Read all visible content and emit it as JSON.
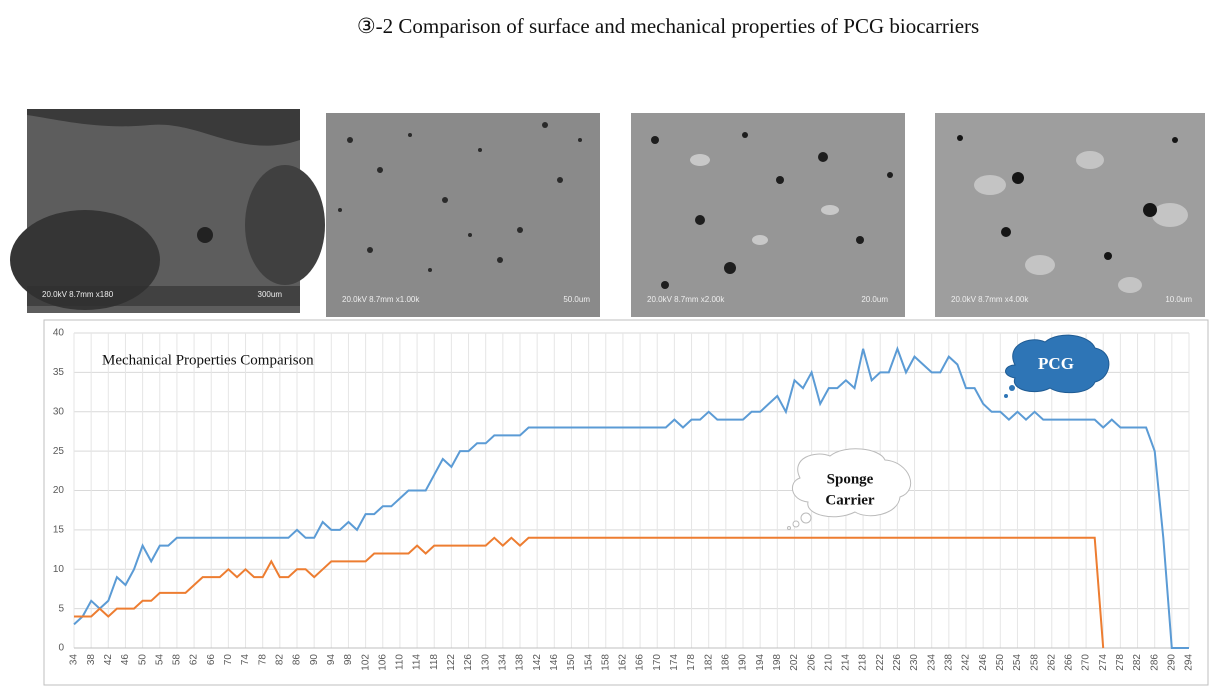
{
  "header": {
    "title": "③-2 Comparison of surface and mechanical properties of PCG biocarriers"
  },
  "images": [
    {
      "info": "20.0kV 8.7mm x180",
      "scale": "300um"
    },
    {
      "info": "20.0kV 8.7mm x1.00k",
      "scale": "50.0um"
    },
    {
      "info": "20.0kV 8.7mm x2.00k",
      "scale": "20.0um"
    },
    {
      "info": "20.0kV 8.7mm x4.00k",
      "scale": "10.0um"
    }
  ],
  "chart_data": {
    "type": "line",
    "title": "Mechanical Properties Comparison",
    "annotations": [
      "PCG",
      "Sponge",
      "Carrier"
    ],
    "x": [
      34,
      36,
      38,
      40,
      42,
      44,
      46,
      48,
      50,
      52,
      54,
      56,
      58,
      60,
      62,
      64,
      66,
      68,
      70,
      72,
      74,
      76,
      78,
      80,
      82,
      84,
      86,
      88,
      90,
      92,
      94,
      96,
      98,
      100,
      102,
      104,
      106,
      108,
      110,
      112,
      114,
      116,
      118,
      120,
      122,
      124,
      126,
      128,
      130,
      132,
      134,
      136,
      138,
      140,
      142,
      144,
      146,
      148,
      150,
      152,
      154,
      156,
      158,
      160,
      162,
      164,
      166,
      168,
      170,
      172,
      174,
      176,
      178,
      180,
      182,
      184,
      186,
      188,
      190,
      192,
      194,
      196,
      198,
      200,
      202,
      204,
      206,
      208,
      210,
      212,
      214,
      216,
      218,
      220,
      222,
      224,
      226,
      228,
      230,
      232,
      234,
      236,
      238,
      240,
      242,
      244,
      246,
      248,
      250,
      252,
      254,
      256,
      258,
      260,
      262,
      264,
      266,
      268,
      270,
      272,
      274,
      276,
      278,
      280,
      282,
      284,
      286,
      288,
      290,
      292,
      294
    ],
    "series": [
      {
        "name": "PCG",
        "color": "#5b9bd5",
        "values": [
          3,
          4,
          6,
          5,
          6,
          9,
          8,
          10,
          13,
          11,
          13,
          13,
          14,
          14,
          14,
          14,
          14,
          14,
          14,
          14,
          14,
          14,
          14,
          14,
          14,
          14,
          15,
          14,
          14,
          16,
          15,
          15,
          16,
          15,
          17,
          17,
          18,
          18,
          19,
          20,
          20,
          20,
          22,
          24,
          23,
          25,
          25,
          26,
          26,
          27,
          27,
          27,
          27,
          28,
          28,
          28,
          28,
          28,
          28,
          28,
          28,
          28,
          28,
          28,
          28,
          28,
          28,
          28,
          28,
          28,
          29,
          28,
          29,
          29,
          30,
          29,
          29,
          29,
          29,
          30,
          30,
          31,
          32,
          30,
          34,
          33,
          35,
          31,
          33,
          33,
          34,
          33,
          38,
          34,
          35,
          35,
          38,
          35,
          37,
          36,
          35,
          35,
          37,
          36,
          33,
          33,
          31,
          30,
          30,
          29,
          30,
          29,
          30,
          29,
          29,
          29,
          29,
          29,
          29,
          29,
          28,
          29,
          28,
          28,
          28,
          28,
          25,
          14,
          0,
          0,
          0
        ]
      },
      {
        "name": "Sponge Carrier",
        "color": "#ed7d31",
        "values": [
          4,
          4,
          4,
          5,
          4,
          5,
          5,
          5,
          6,
          6,
          7,
          7,
          7,
          7,
          8,
          9,
          9,
          9,
          10,
          9,
          10,
          9,
          9,
          11,
          9,
          9,
          10,
          10,
          9,
          10,
          11,
          11,
          11,
          11,
          11,
          12,
          12,
          12,
          12,
          12,
          13,
          12,
          13,
          13,
          13,
          13,
          13,
          13,
          13,
          14,
          13,
          14,
          13,
          14,
          14,
          14,
          14,
          14,
          14,
          14,
          14,
          14,
          14,
          14,
          14,
          14,
          14,
          14,
          14,
          14,
          14,
          14,
          14,
          14,
          14,
          14,
          14,
          14,
          14,
          14,
          14,
          14,
          14,
          14,
          14,
          14,
          14,
          14,
          14,
          14,
          14,
          14,
          14,
          14,
          14,
          14,
          14,
          14,
          14,
          14,
          14,
          14,
          14,
          14,
          14,
          14,
          14,
          14,
          14,
          14,
          14,
          14,
          14,
          14,
          14,
          14,
          14,
          14,
          14,
          14,
          0,
          null,
          null,
          null,
          null,
          null,
          null,
          null,
          null,
          null,
          null
        ]
      }
    ],
    "xlim": [
      34,
      294
    ],
    "ylim": [
      0,
      40
    ],
    "yticks": [
      0,
      5,
      10,
      15,
      20,
      25,
      30,
      35,
      40
    ],
    "xticks": [
      34,
      38,
      42,
      46,
      50,
      54,
      58,
      62,
      66,
      70,
      74,
      78,
      82,
      86,
      90,
      94,
      98,
      102,
      106,
      110,
      114,
      118,
      122,
      126,
      130,
      134,
      138,
      142,
      146,
      150,
      154,
      158,
      162,
      166,
      170,
      174,
      178,
      182,
      186,
      190,
      194,
      198,
      202,
      206,
      210,
      214,
      218,
      222,
      226,
      230,
      234,
      238,
      242,
      246,
      250,
      254,
      258,
      262,
      266,
      270,
      274,
      278,
      282,
      286,
      290,
      294
    ],
    "grid": true
  }
}
